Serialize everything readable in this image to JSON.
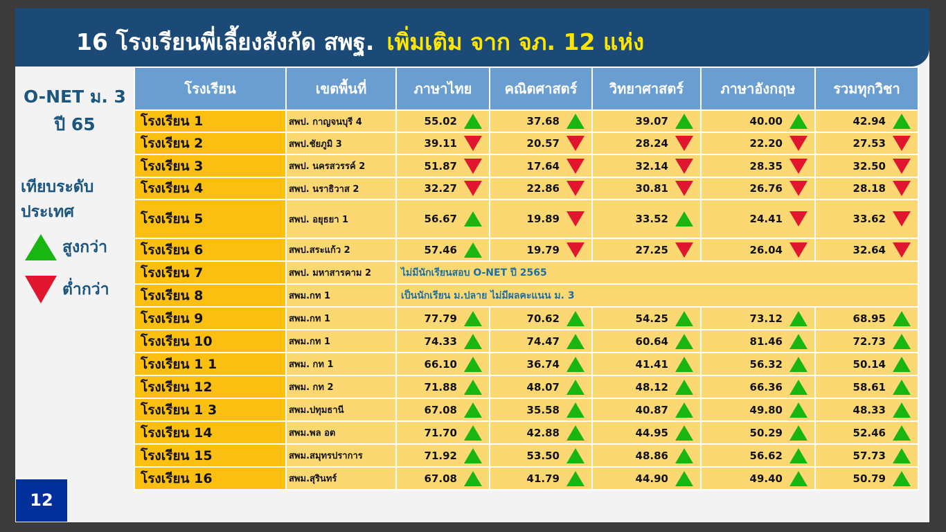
{
  "title": {
    "main": "16 โรงเรียนพี่เลี้ยงสังกัด สพฐ.",
    "highlight": "เพิ่มเติม จาก จภ. 12 แห่ง"
  },
  "side": {
    "onet_line1": "O-NET ม. 3",
    "onet_line2": "ปี 65",
    "compare_line1": "เทียบระดับ",
    "compare_line2": "ประเทศ",
    "higher": "สูงกว่า",
    "lower": "ต่ำกว่า"
  },
  "page_number": "12",
  "colors": {
    "banner": "#1a4a75",
    "highlight": "#ffe600",
    "header": "#6a9ed1",
    "school_cell": "#fbbf12",
    "row": "#fcd872",
    "up": "#19b512",
    "down": "#e0152e"
  },
  "table": {
    "headers": [
      "โรงเรียน",
      "เขตพื้นที่",
      "ภาษาไทย",
      "คณิตศาสตร์",
      "วิทยาศาสตร์",
      "ภาษาอังกฤษ",
      "รวมทุกวิชา"
    ],
    "rows": [
      {
        "school": "โรงเรียน  1",
        "area": "สพป. กาญจนบุรี 4",
        "scores": [
          {
            "v": "55.02",
            "d": "up"
          },
          {
            "v": "37.68",
            "d": "up"
          },
          {
            "v": "39.07",
            "d": "up"
          },
          {
            "v": "40.00",
            "d": "up"
          },
          {
            "v": "42.94",
            "d": "up"
          }
        ]
      },
      {
        "school": "โรงเรียน  2",
        "area": "สพป.ชัยภูมิ 3",
        "scores": [
          {
            "v": "39.11",
            "d": "down"
          },
          {
            "v": "20.57",
            "d": "down"
          },
          {
            "v": "28.24",
            "d": "down"
          },
          {
            "v": "22.20",
            "d": "down"
          },
          {
            "v": "27.53",
            "d": "down"
          }
        ]
      },
      {
        "school": "โรงเรียน  3",
        "area": "สพป. นครสวรรค์ 2",
        "scores": [
          {
            "v": "51.87",
            "d": "down"
          },
          {
            "v": "17.64",
            "d": "down"
          },
          {
            "v": "32.14",
            "d": "down"
          },
          {
            "v": "28.35",
            "d": "down"
          },
          {
            "v": "32.50",
            "d": "down"
          }
        ]
      },
      {
        "school": "โรงเรียน  4",
        "area": "สพป. นราธิวาส 2",
        "scores": [
          {
            "v": "32.27",
            "d": "down"
          },
          {
            "v": "22.86",
            "d": "down"
          },
          {
            "v": "30.81",
            "d": "down"
          },
          {
            "v": "26.76",
            "d": "down"
          },
          {
            "v": "28.18",
            "d": "down"
          }
        ]
      },
      {
        "school": "โรงเรียน  5",
        "area": "สพป. อยุธยา 1",
        "scores": [
          {
            "v": "56.67",
            "d": "up"
          },
          {
            "v": "19.89",
            "d": "down"
          },
          {
            "v": "33.52",
            "d": "up"
          },
          {
            "v": "24.41",
            "d": "down"
          },
          {
            "v": "33.62",
            "d": "down"
          }
        ]
      },
      {
        "school": "โรงเรียน  6",
        "area": "สพป.สระแก้ว 2",
        "scores": [
          {
            "v": "57.46",
            "d": "up"
          },
          {
            "v": "19.79",
            "d": "down"
          },
          {
            "v": "27.25",
            "d": "down"
          },
          {
            "v": "26.04",
            "d": "down"
          },
          {
            "v": "32.64",
            "d": "down"
          }
        ]
      },
      {
        "school": "โรงเรียน  7",
        "area": "สพป. มหาสารคาม 2",
        "note": "ไม่มีนักเรียนสอบ O-NET ปี 2565"
      },
      {
        "school": "โรงเรียน  8",
        "area": "สพม.กท 1",
        "note": "เป็นนักเรียน ม.ปลาย ไม่มีผลคะแนน ม. 3"
      },
      {
        "school": "โรงเรียน  9",
        "area": "สพม.กท 1",
        "scores": [
          {
            "v": "77.79",
            "d": "up"
          },
          {
            "v": "70.62",
            "d": "up"
          },
          {
            "v": "54.25",
            "d": "up"
          },
          {
            "v": "73.12",
            "d": "up"
          },
          {
            "v": "68.95",
            "d": "up"
          }
        ]
      },
      {
        "school": "โรงเรียน  10",
        "area": "สพม.กท 1",
        "scores": [
          {
            "v": "74.33",
            "d": "up"
          },
          {
            "v": "74.47",
            "d": "up"
          },
          {
            "v": "60.64",
            "d": "up"
          },
          {
            "v": "81.46",
            "d": "up"
          },
          {
            "v": "72.73",
            "d": "up"
          }
        ]
      },
      {
        "school": "โรงเรียน  1 1",
        "area": "สพม. กท 1",
        "scores": [
          {
            "v": "66.10",
            "d": "up"
          },
          {
            "v": "36.74",
            "d": "up"
          },
          {
            "v": "41.41",
            "d": "up"
          },
          {
            "v": "56.32",
            "d": "up"
          },
          {
            "v": "50.14",
            "d": "up"
          }
        ]
      },
      {
        "school": "โรงเรียน  12",
        "area": "สพม. กท 2",
        "scores": [
          {
            "v": "71.88",
            "d": "up"
          },
          {
            "v": "48.07",
            "d": "up"
          },
          {
            "v": "48.12",
            "d": "up"
          },
          {
            "v": "66.36",
            "d": "up"
          },
          {
            "v": "58.61",
            "d": "up"
          }
        ]
      },
      {
        "school": "โรงเรียน  1 3",
        "area": "สพม.ปทุมธานี",
        "scores": [
          {
            "v": "67.08",
            "d": "up"
          },
          {
            "v": "35.58",
            "d": "up"
          },
          {
            "v": "40.87",
            "d": "up"
          },
          {
            "v": "49.80",
            "d": "up"
          },
          {
            "v": "48.33",
            "d": "up"
          }
        ]
      },
      {
        "school": "โรงเรียน  14",
        "area": "สพม.พล อต",
        "scores": [
          {
            "v": "71.70",
            "d": "up"
          },
          {
            "v": "42.88",
            "d": "up"
          },
          {
            "v": "44.95",
            "d": "up"
          },
          {
            "v": "50.29",
            "d": "up"
          },
          {
            "v": "52.46",
            "d": "up"
          }
        ]
      },
      {
        "school": "โรงเรียน  15",
        "area": "สพม.สมุทรปราการ",
        "scores": [
          {
            "v": "71.92",
            "d": "up"
          },
          {
            "v": "53.50",
            "d": "up"
          },
          {
            "v": "48.86",
            "d": "up"
          },
          {
            "v": "56.62",
            "d": "up"
          },
          {
            "v": "57.73",
            "d": "up"
          }
        ]
      },
      {
        "school": "โรงเรียน  16",
        "area": "สพม.สุรินทร์",
        "scores": [
          {
            "v": "67.08",
            "d": "up"
          },
          {
            "v": "41.79",
            "d": "up"
          },
          {
            "v": "44.90",
            "d": "up"
          },
          {
            "v": "49.40",
            "d": "up"
          },
          {
            "v": "50.79",
            "d": "up"
          }
        ]
      }
    ]
  }
}
